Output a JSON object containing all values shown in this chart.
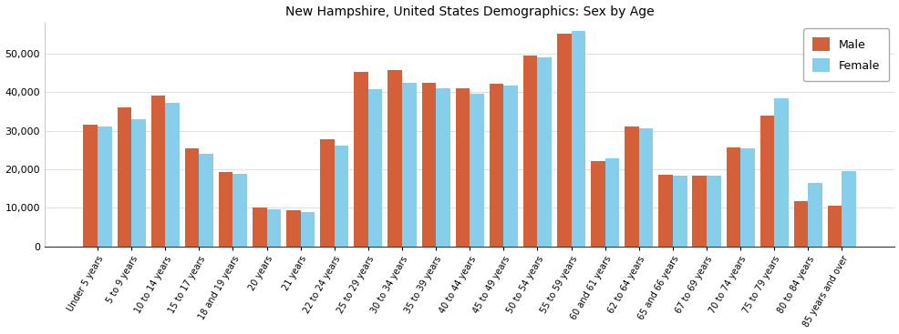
{
  "title": "New Hampshire, United States Demographics: Sex by Age",
  "categories": [
    "Under 5 years",
    "5 to 9 years",
    "10 to 14 years",
    "15 to 17 years",
    "18 and 19 years",
    "20 years",
    "21 years",
    "22 to 24 years",
    "25 to 29 years",
    "30 to 34 years",
    "35 to 39 years",
    "40 to 44 years",
    "45 to 49 years",
    "50 to 54 years",
    "55 to 59 years",
    "60 and 61 years",
    "62 to 64 years",
    "65 and 66 years",
    "67 to 69 years",
    "70 to 74 years",
    "75 to 79 years",
    "80 to 84 years",
    "85 years and over"
  ],
  "male": [
    31500,
    36000,
    39200,
    25300,
    19300,
    10000,
    9300,
    27700,
    45300,
    45600,
    42300,
    41000,
    42200,
    49500,
    55200,
    22000,
    31000,
    18500,
    18400,
    25700,
    33900,
    11800,
    10600
  ],
  "female": [
    31000,
    33000,
    37300,
    24000,
    18900,
    9700,
    9000,
    26100,
    40800,
    42400,
    41000,
    39600,
    41600,
    48900,
    55800,
    22900,
    30600,
    18400,
    18300,
    25400,
    38300,
    16500,
    19400
  ],
  "male_color": "#d4603a",
  "female_color": "#87ceeb",
  "ylim": [
    0,
    58000
  ],
  "yticks": [
    0,
    10000,
    20000,
    30000,
    40000,
    50000
  ],
  "plot_bg": "#ffffff",
  "fig_bg": "#ffffff",
  "title_fontsize": 10,
  "bar_width": 0.42,
  "tick_fontsize": 7,
  "ytick_fontsize": 8
}
